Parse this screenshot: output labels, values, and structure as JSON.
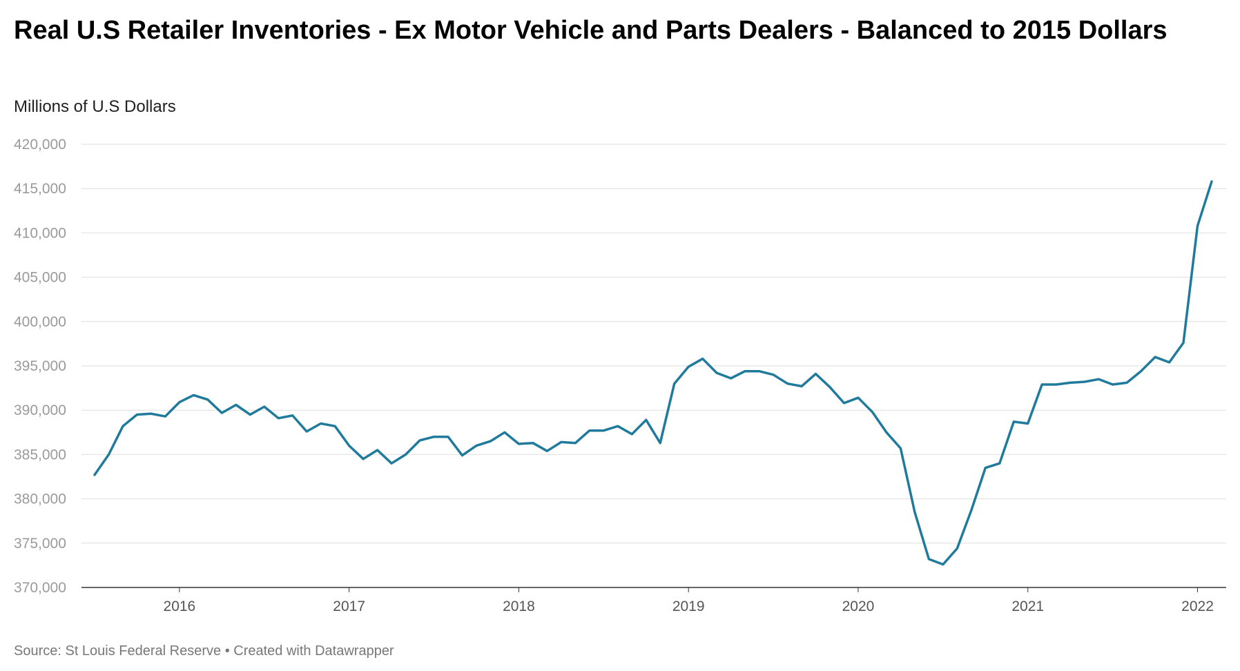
{
  "chart_data": {
    "type": "line",
    "title": "Real U.S Retailer Inventories - Ex Motor Vehicle and Parts Dealers - Balanced to 2015 Dollars",
    "subtitle": "Millions of U.S Dollars",
    "xlabel": "",
    "ylabel": "",
    "x_start": "2015-07",
    "frequency": "monthly",
    "x_ticks": [
      "2016",
      "2017",
      "2018",
      "2019",
      "2020",
      "2021",
      "2022"
    ],
    "y_ticks": [
      "420,000",
      "415,000",
      "410,000",
      "405,000",
      "400,000",
      "395,000",
      "390,000",
      "385,000",
      "380,000",
      "375,000",
      "370,000"
    ],
    "ylim": [
      370000,
      420000
    ],
    "grid": true,
    "legend": "none",
    "line_color": "#1f7a9c",
    "series": [
      {
        "values": [
          382700,
          385000,
          388200,
          389500,
          389600,
          389300,
          390900,
          391700,
          391200,
          389700,
          390600,
          389500,
          390400,
          389100,
          389400,
          387600,
          388500,
          388200,
          386000,
          384500,
          385500,
          384000,
          385000,
          386600,
          387000,
          387000,
          384900,
          386000,
          386500,
          387500,
          386200,
          386300,
          385400,
          386400,
          386300,
          387700,
          387700,
          388200,
          387300,
          388900,
          386300,
          393000,
          394900,
          395800,
          394200,
          393600,
          394400,
          394400,
          394000,
          393000,
          392700,
          394100,
          392600,
          390800,
          391400,
          389800,
          387500,
          385700,
          378500,
          373200,
          372600,
          374400,
          378700,
          383500,
          384000,
          388700,
          388500,
          392900,
          392900,
          393100,
          393200,
          393500,
          392900,
          393100,
          394400,
          396000,
          395400,
          397600,
          410800,
          415800
        ]
      }
    ],
    "footer": "Source: St Louis Federal Reserve • Created with Datawrapper"
  }
}
